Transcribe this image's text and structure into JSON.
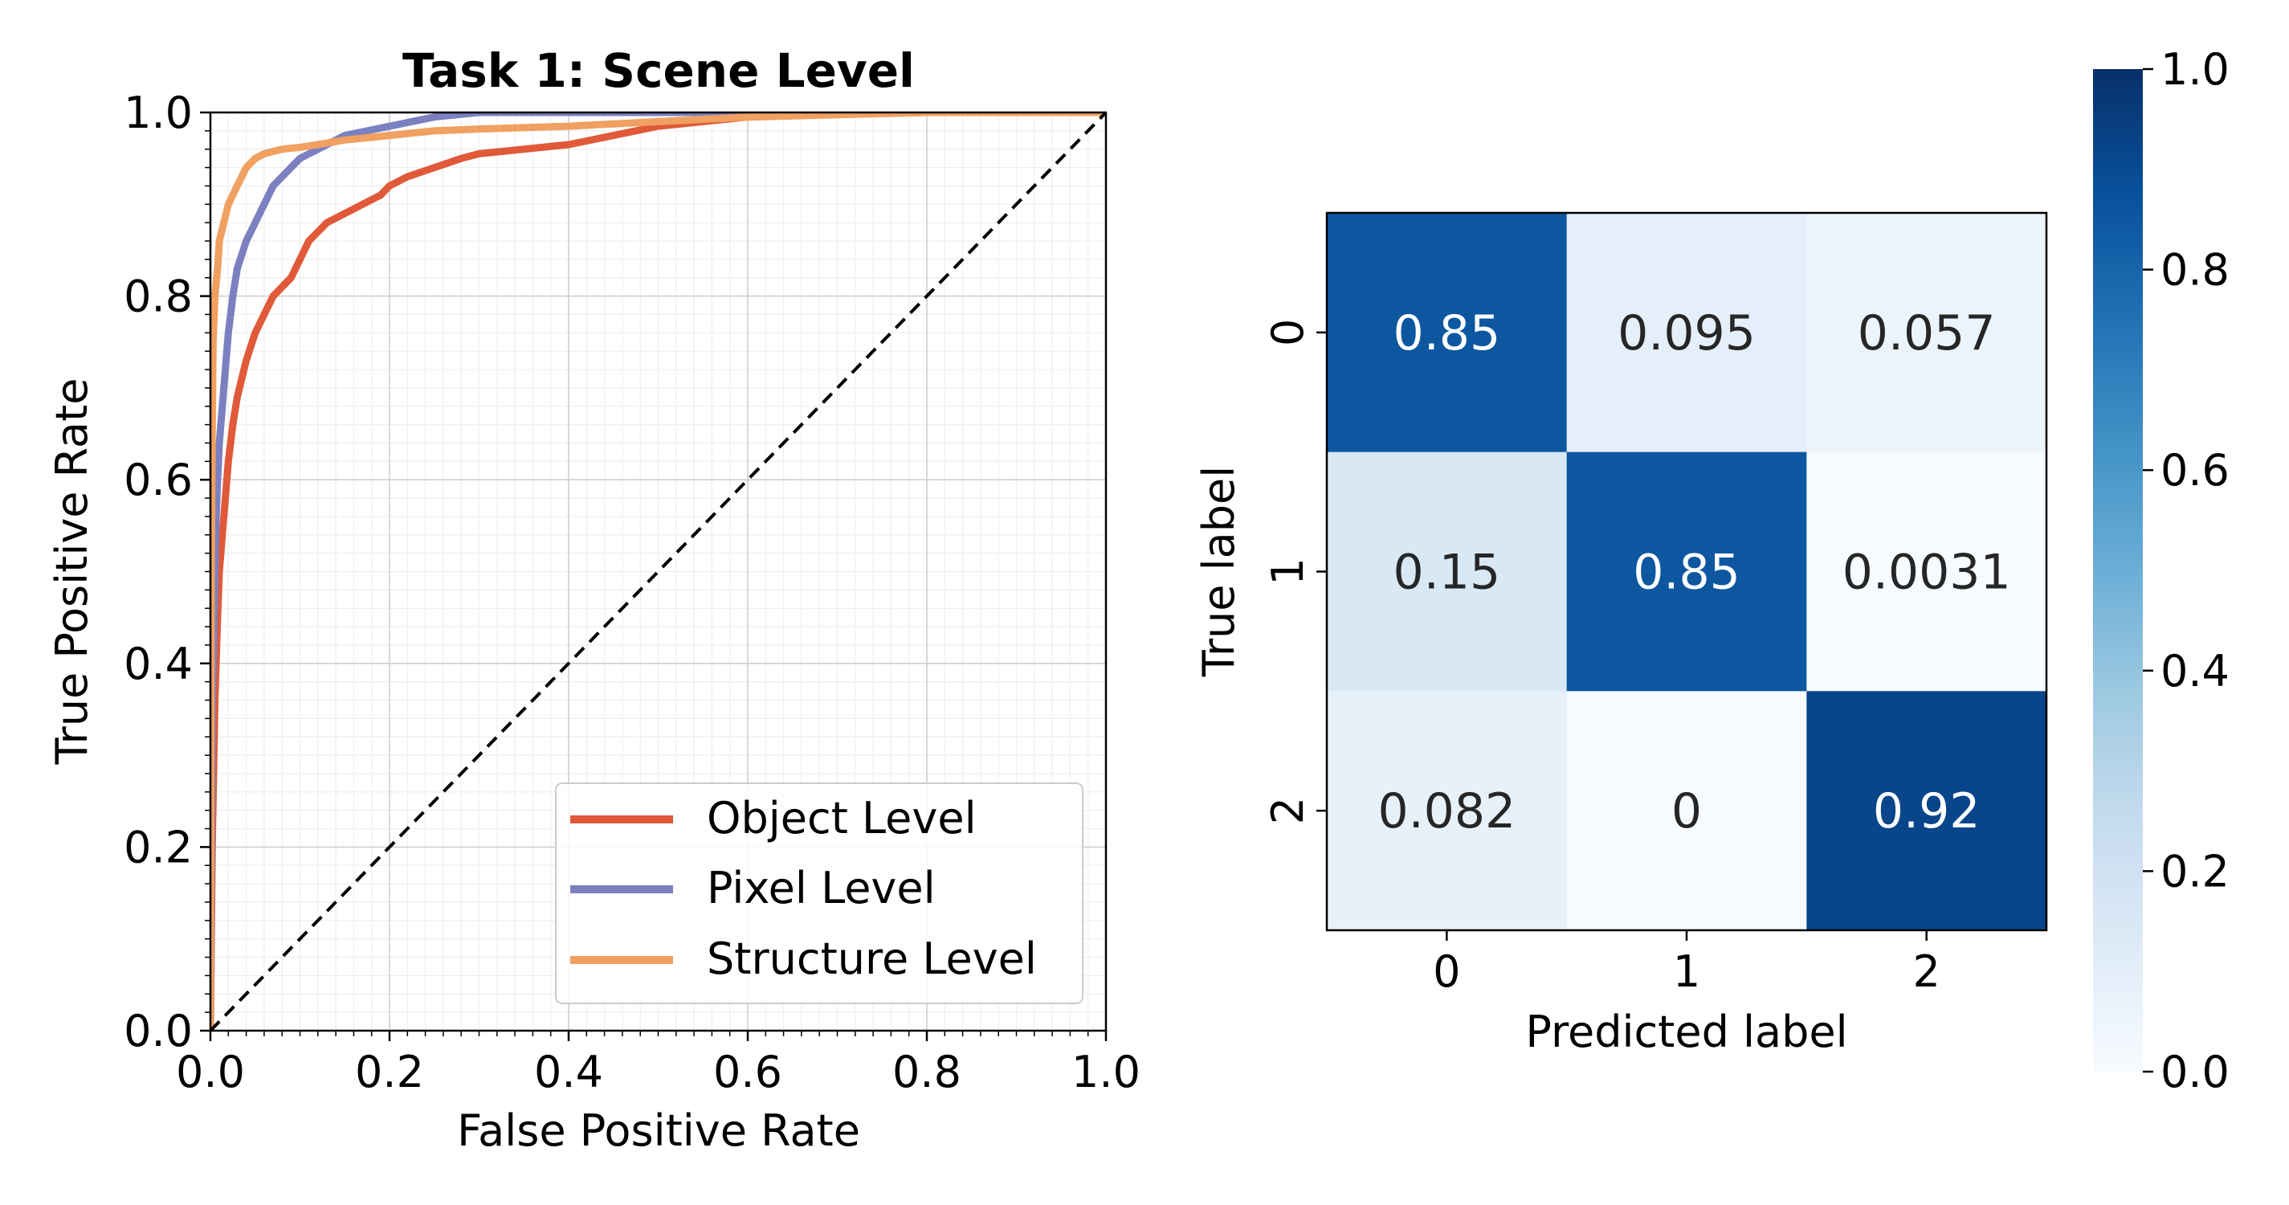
{
  "chart_data": [
    {
      "type": "line",
      "title": "Task 1: Scene Level",
      "xlabel": "False Positive Rate",
      "ylabel": "True Positive Rate",
      "xlim": [
        0.0,
        1.0
      ],
      "ylim": [
        0.0,
        1.0
      ],
      "xticks": [
        "0.0",
        "0.2",
        "0.4",
        "0.6",
        "0.8",
        "1.0"
      ],
      "yticks": [
        "0.0",
        "0.2",
        "0.4",
        "0.6",
        "0.8",
        "1.0"
      ],
      "grid": true,
      "minor_grid": true,
      "legend_position": "lower-right",
      "series": [
        {
          "name": "Object Level",
          "color": "#e05a3a",
          "x": [
            0.0,
            0.002,
            0.005,
            0.008,
            0.01,
            0.015,
            0.02,
            0.025,
            0.03,
            0.04,
            0.05,
            0.06,
            0.07,
            0.08,
            0.09,
            0.1,
            0.11,
            0.12,
            0.13,
            0.15,
            0.17,
            0.19,
            0.2,
            0.22,
            0.25,
            0.28,
            0.3,
            0.35,
            0.4,
            0.45,
            0.5,
            0.55,
            0.6,
            0.7,
            0.8,
            0.9,
            1.0
          ],
          "y": [
            0.0,
            0.2,
            0.36,
            0.45,
            0.5,
            0.56,
            0.62,
            0.66,
            0.69,
            0.73,
            0.76,
            0.78,
            0.8,
            0.81,
            0.82,
            0.84,
            0.86,
            0.87,
            0.88,
            0.89,
            0.9,
            0.91,
            0.92,
            0.93,
            0.94,
            0.95,
            0.955,
            0.96,
            0.965,
            0.975,
            0.985,
            0.99,
            0.995,
            0.998,
            1.0,
            1.0,
            1.0
          ]
        },
        {
          "name": "Pixel Level",
          "color": "#7b80c0",
          "x": [
            0.0,
            0.002,
            0.004,
            0.006,
            0.008,
            0.01,
            0.015,
            0.02,
            0.025,
            0.03,
            0.04,
            0.05,
            0.06,
            0.07,
            0.08,
            0.1,
            0.12,
            0.15,
            0.2,
            0.25,
            0.3,
            0.4,
            0.5,
            0.6,
            0.8,
            1.0
          ],
          "y": [
            0.0,
            0.35,
            0.45,
            0.55,
            0.6,
            0.64,
            0.7,
            0.76,
            0.8,
            0.83,
            0.86,
            0.88,
            0.9,
            0.92,
            0.93,
            0.95,
            0.96,
            0.975,
            0.985,
            0.995,
            1.0,
            1.0,
            1.0,
            1.0,
            1.0,
            1.0
          ]
        },
        {
          "name": "Structure Level",
          "color": "#f0a060",
          "x": [
            0.0,
            0.001,
            0.002,
            0.003,
            0.005,
            0.008,
            0.01,
            0.015,
            0.02,
            0.03,
            0.04,
            0.05,
            0.06,
            0.08,
            0.1,
            0.12,
            0.15,
            0.2,
            0.25,
            0.3,
            0.4,
            0.5,
            0.6,
            0.8,
            1.0
          ],
          "y": [
            0.0,
            0.5,
            0.65,
            0.75,
            0.8,
            0.83,
            0.86,
            0.88,
            0.9,
            0.92,
            0.94,
            0.95,
            0.955,
            0.96,
            0.962,
            0.965,
            0.97,
            0.975,
            0.98,
            0.982,
            0.985,
            0.99,
            0.995,
            1.0,
            1.0
          ]
        }
      ],
      "reference_line": {
        "x": [
          0,
          1
        ],
        "y": [
          0,
          1
        ],
        "style": "dashed",
        "color": "#000000"
      }
    },
    {
      "type": "heatmap",
      "title": "",
      "xlabel": "Predicted label",
      "ylabel": "True label",
      "x_categories": [
        "0",
        "1",
        "2"
      ],
      "y_categories": [
        "0",
        "1",
        "2"
      ],
      "values": [
        [
          0.85,
          0.095,
          0.057
        ],
        [
          0.15,
          0.85,
          0.0031
        ],
        [
          0.082,
          0,
          0.92
        ]
      ],
      "cell_labels": [
        [
          "0.85",
          "0.095",
          "0.057"
        ],
        [
          "0.15",
          "0.85",
          "0.0031"
        ],
        [
          "0.082",
          "0",
          "0.92"
        ]
      ],
      "colormap": "Blues",
      "colorbar": {
        "range": [
          0.0,
          1.0
        ],
        "ticks": [
          "0.0",
          "0.2",
          "0.4",
          "0.6",
          "0.8",
          "1.0"
        ]
      }
    }
  ]
}
